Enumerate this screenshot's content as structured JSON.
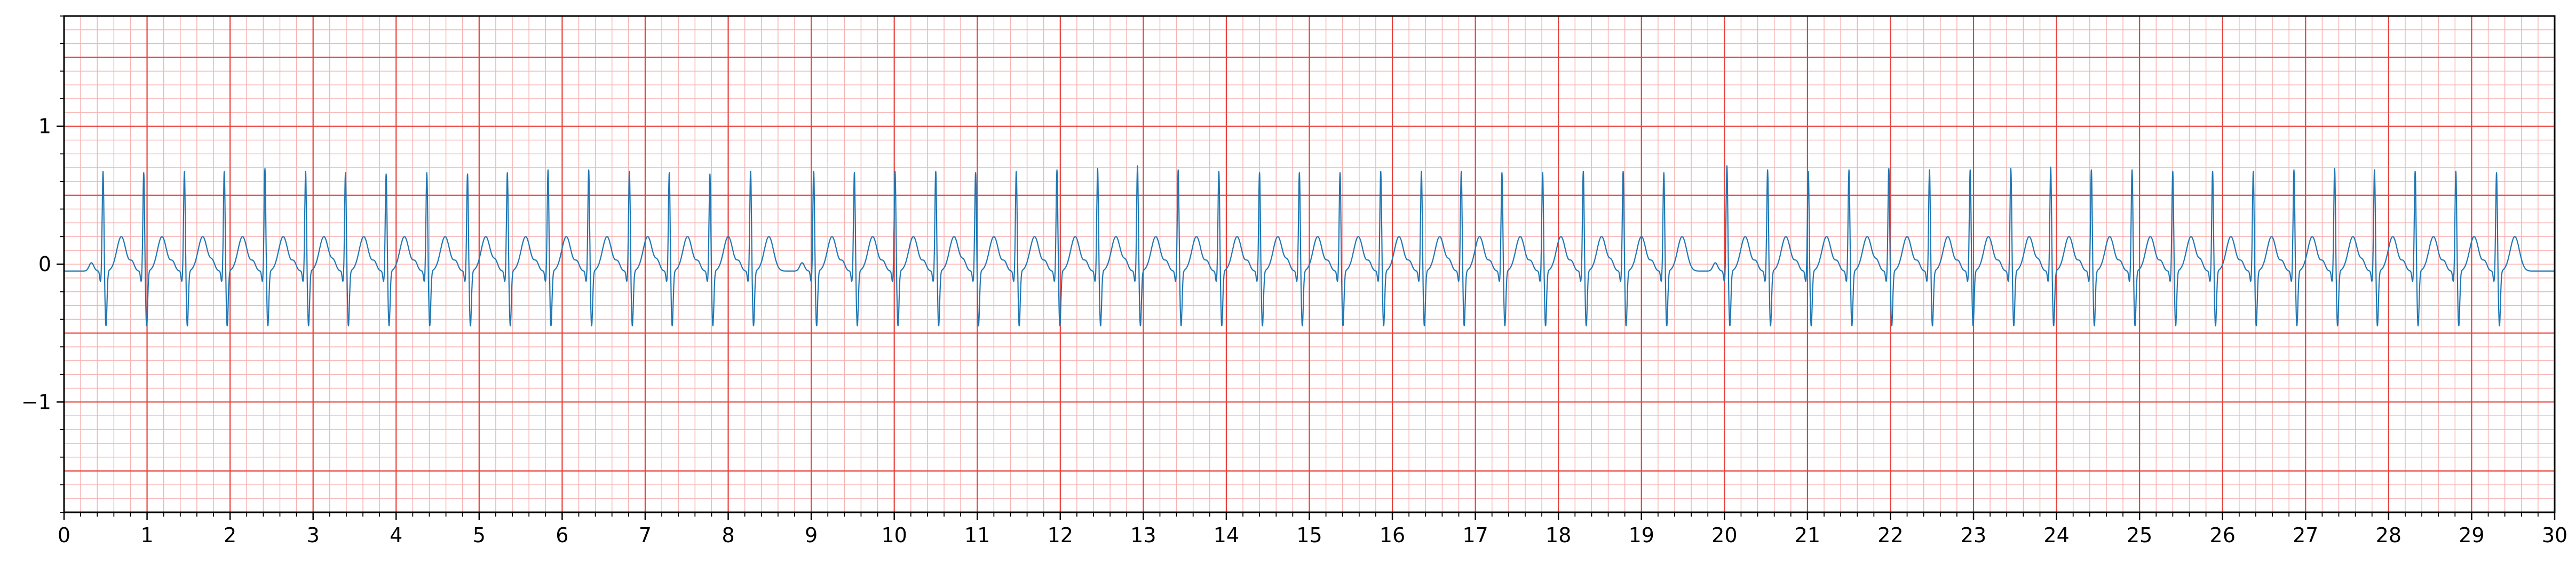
{
  "chart_data": {
    "type": "line",
    "title": "",
    "xlabel": "",
    "ylabel": "",
    "xlim": [
      0,
      30
    ],
    "ylim": [
      -1.8,
      1.8
    ],
    "x_ticks": [
      0,
      1,
      2,
      3,
      4,
      5,
      6,
      7,
      8,
      9,
      10,
      11,
      12,
      13,
      14,
      15,
      16,
      17,
      18,
      19,
      20,
      21,
      22,
      23,
      24,
      25,
      26,
      27,
      28,
      29,
      30
    ],
    "x_tick_labels": [
      "0",
      "1",
      "2",
      "3",
      "4",
      "5",
      "6",
      "7",
      "8",
      "9",
      "10",
      "11",
      "12",
      "13",
      "14",
      "15",
      "16",
      "17",
      "18",
      "19",
      "20",
      "21",
      "22",
      "23",
      "24",
      "25",
      "26",
      "27",
      "28",
      "29",
      "30"
    ],
    "y_ticks": [
      -1,
      0,
      1
    ],
    "y_tick_labels": [
      "−1",
      "0",
      "1"
    ],
    "grid": "ecg",
    "major_grid_x": 1,
    "major_grid_y": 0.5,
    "minor_grid_x": 0.2,
    "minor_grid_y": 0.1,
    "colors": {
      "signal": "#1f77b4",
      "major_grid": "#e8413b",
      "minor_grid": "#f7b2b2",
      "axes": "#000000"
    },
    "series": [
      {
        "r_peaks_s": [
          0.47,
          0.96,
          1.45,
          1.93,
          2.42,
          2.91,
          3.39,
          3.88,
          4.37,
          4.86,
          5.34,
          5.83,
          6.32,
          6.81,
          7.29,
          7.78,
          8.27,
          9.03,
          9.52,
          10.01,
          10.5,
          10.98,
          11.47,
          11.96,
          12.45,
          12.93,
          13.42,
          13.91,
          14.4,
          14.88,
          15.37,
          15.86,
          16.35,
          16.83,
          17.32,
          17.81,
          18.3,
          18.78,
          19.27,
          20.03,
          20.52,
          21.01,
          21.5,
          21.98,
          22.47,
          22.96,
          23.45,
          23.93,
          24.42,
          24.91,
          25.4,
          25.88,
          26.37,
          26.86,
          27.35,
          27.83,
          28.32,
          28.81,
          29.3
        ],
        "r_amplitude": [
          0.73,
          0.72,
          0.73,
          0.73,
          0.75,
          0.73,
          0.72,
          0.71,
          0.72,
          0.71,
          0.72,
          0.74,
          0.74,
          0.73,
          0.72,
          0.71,
          0.73,
          0.73,
          0.72,
          0.73,
          0.73,
          0.72,
          0.73,
          0.74,
          0.75,
          0.77,
          0.74,
          0.73,
          0.72,
          0.72,
          0.72,
          0.73,
          0.73,
          0.73,
          0.72,
          0.72,
          0.73,
          0.73,
          0.72,
          0.77,
          0.74,
          0.73,
          0.74,
          0.75,
          0.74,
          0.74,
          0.75,
          0.76,
          0.74,
          0.74,
          0.73,
          0.73,
          0.73,
          0.74,
          0.75,
          0.74,
          0.73,
          0.73,
          0.72
        ],
        "s_amplitude": -0.4,
        "t_amplitude": 0.25,
        "baseline": -0.05
      }
    ]
  }
}
